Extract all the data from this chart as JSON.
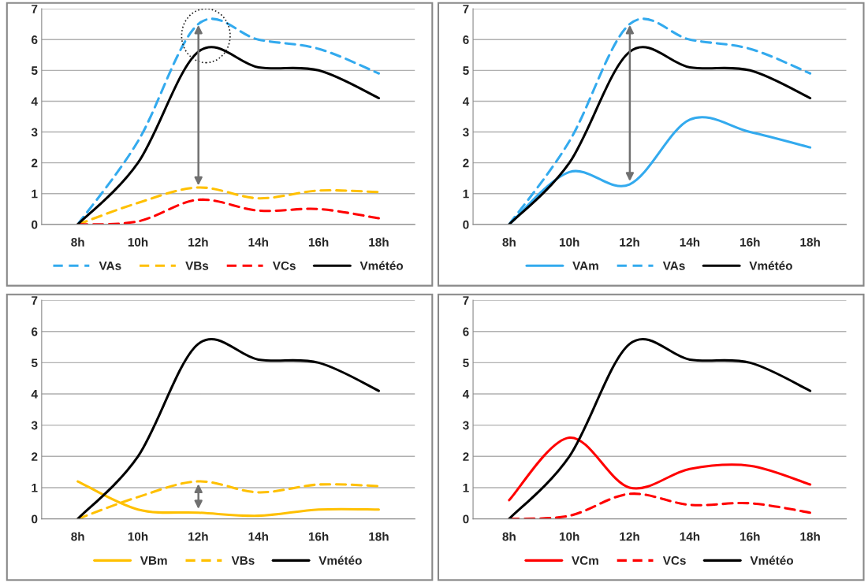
{
  "chart_data": [
    {
      "type": "line",
      "categories": [
        "8h",
        "10h",
        "12h",
        "14h",
        "16h",
        "18h"
      ],
      "ylim": [
        0,
        7
      ],
      "yticks": [
        0,
        1,
        2,
        3,
        4,
        5,
        6,
        7
      ],
      "grid": "y",
      "legend": "bottom",
      "marker": "none",
      "series": [
        {
          "name": "VAs",
          "color": "#33aaee",
          "line_style": "dashed",
          "values": [
            0,
            2.7,
            6.5,
            6.0,
            5.7,
            4.9
          ]
        },
        {
          "name": "VBs",
          "color": "#ffc000",
          "line_style": "dashed",
          "values": [
            0,
            0.7,
            1.2,
            0.85,
            1.1,
            1.05
          ]
        },
        {
          "name": "VCs",
          "color": "#ff0000",
          "line_style": "dashed",
          "values": [
            0,
            0.1,
            0.8,
            0.45,
            0.5,
            0.2
          ]
        },
        {
          "name": "Vmétéo",
          "color": "#000000",
          "line_style": "solid",
          "values": [
            0,
            2.0,
            5.6,
            5.1,
            5.0,
            4.1
          ]
        }
      ]
    },
    {
      "type": "line",
      "categories": [
        "8h",
        "10h",
        "12h",
        "14h",
        "16h",
        "18h"
      ],
      "ylim": [
        0,
        7
      ],
      "yticks": [
        0,
        1,
        2,
        3,
        4,
        5,
        6,
        7
      ],
      "grid": "y",
      "legend": "bottom",
      "marker": "none",
      "series": [
        {
          "name": "VAm",
          "color": "#33aaee",
          "line_style": "solid",
          "values": [
            0,
            1.7,
            1.3,
            3.4,
            3.0,
            2.5
          ]
        },
        {
          "name": "VAs",
          "color": "#33aaee",
          "line_style": "dashed",
          "values": [
            0,
            2.7,
            6.5,
            6.0,
            5.7,
            4.9
          ]
        },
        {
          "name": "Vmétéo",
          "color": "#000000",
          "line_style": "solid",
          "values": [
            0,
            2.0,
            5.6,
            5.1,
            5.0,
            4.1
          ]
        }
      ]
    },
    {
      "type": "line",
      "categories": [
        "8h",
        "10h",
        "12h",
        "14h",
        "16h",
        "18h"
      ],
      "ylim": [
        0,
        7
      ],
      "yticks": [
        0,
        1,
        2,
        3,
        4,
        5,
        6,
        7
      ],
      "grid": "y",
      "legend": "bottom",
      "marker": "none",
      "series": [
        {
          "name": "VBm",
          "color": "#ffc000",
          "line_style": "solid",
          "values": [
            1.2,
            0.3,
            0.2,
            0.1,
            0.3,
            0.3
          ]
        },
        {
          "name": "VBs",
          "color": "#ffc000",
          "line_style": "dashed",
          "values": [
            0,
            0.7,
            1.2,
            0.85,
            1.1,
            1.05
          ]
        },
        {
          "name": "Vmétéo",
          "color": "#000000",
          "line_style": "solid",
          "values": [
            0,
            2.0,
            5.6,
            5.1,
            5.0,
            4.1
          ]
        }
      ]
    },
    {
      "type": "line",
      "categories": [
        "8h",
        "10h",
        "12h",
        "14h",
        "16h",
        "18h"
      ],
      "ylim": [
        0,
        7
      ],
      "yticks": [
        0,
        1,
        2,
        3,
        4,
        5,
        6,
        7
      ],
      "grid": "y",
      "legend": "bottom",
      "marker": "none",
      "series": [
        {
          "name": "VCm",
          "color": "#ff0000",
          "line_style": "solid",
          "values": [
            0.6,
            2.6,
            1.0,
            1.6,
            1.7,
            1.1
          ]
        },
        {
          "name": "VCs",
          "color": "#ff0000",
          "line_style": "dashed",
          "values": [
            0,
            0.1,
            0.8,
            0.45,
            0.5,
            0.2
          ]
        },
        {
          "name": "Vmétéo",
          "color": "#000000",
          "line_style": "solid",
          "values": [
            0,
            2.0,
            5.6,
            5.1,
            5.0,
            4.1
          ]
        }
      ]
    }
  ]
}
